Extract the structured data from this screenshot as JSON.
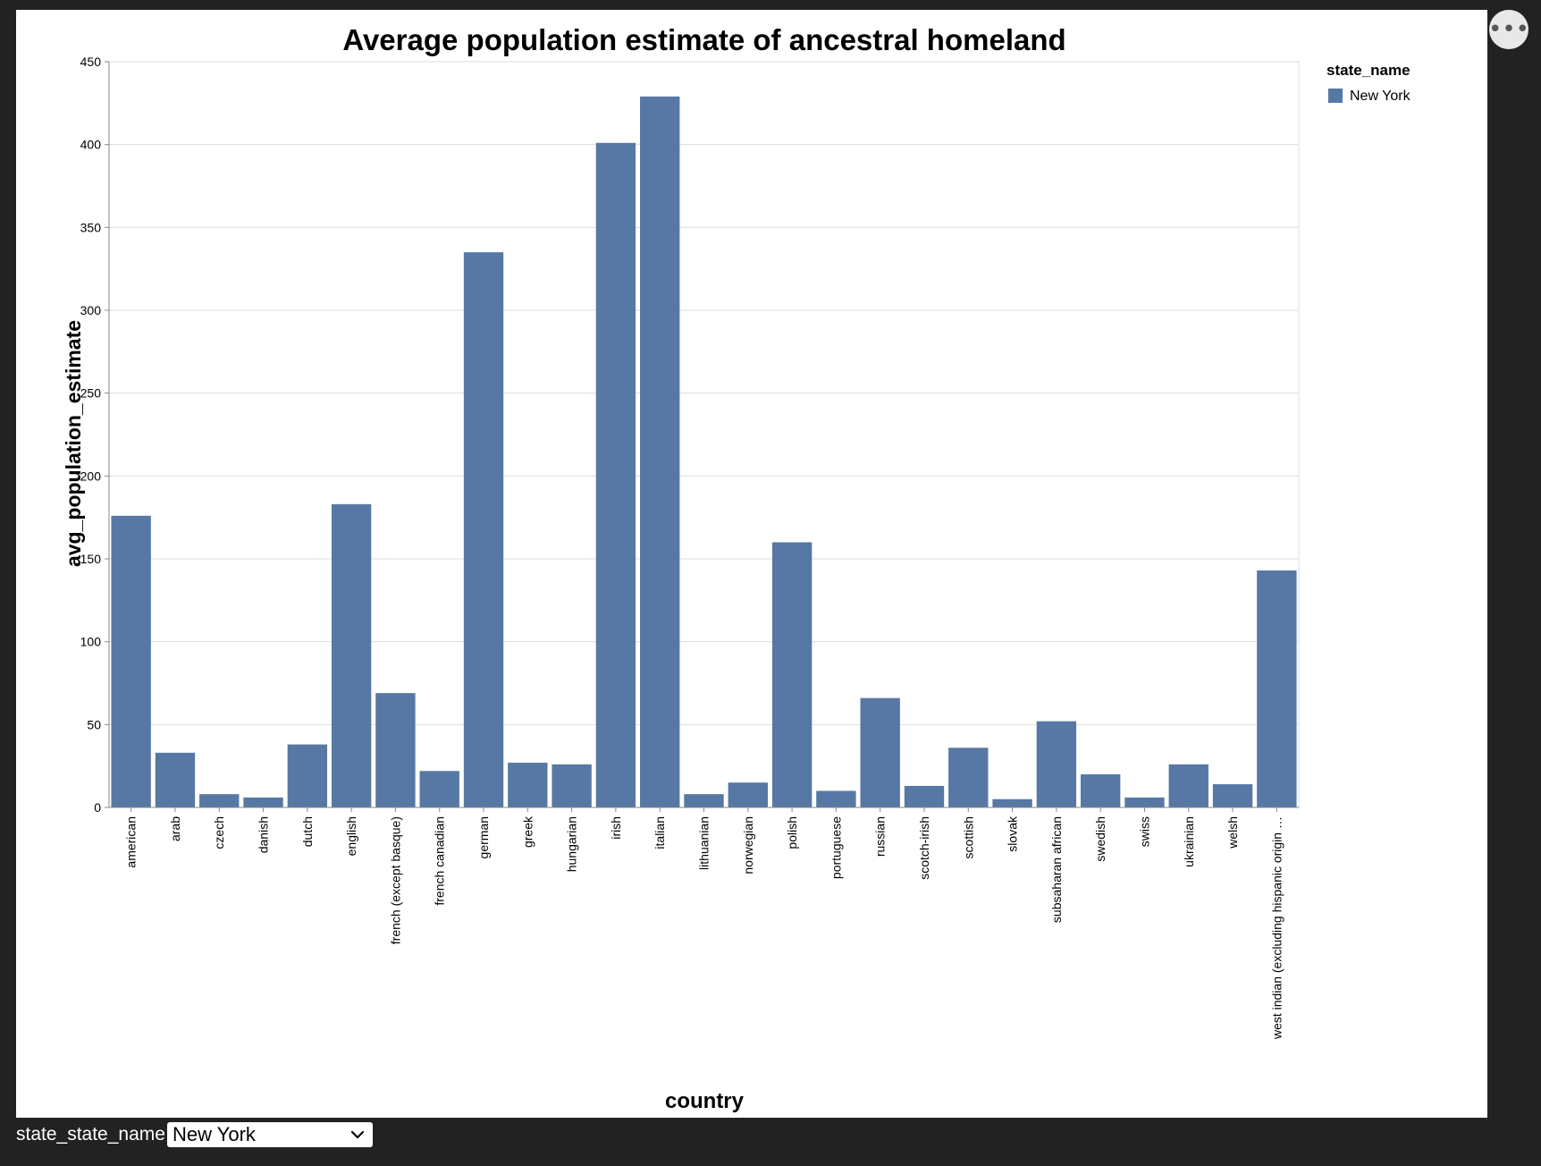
{
  "chart_data": {
    "type": "bar",
    "title": "Average population estimate of ancestral homeland",
    "xlabel": "country",
    "ylabel": "avg_population_estimate",
    "ylim": [
      0,
      450
    ],
    "yticks": [
      0,
      50,
      100,
      150,
      200,
      250,
      300,
      350,
      400,
      450
    ],
    "grid": true,
    "categories": [
      "american",
      "arab",
      "czech",
      "danish",
      "dutch",
      "english",
      "french (except basque)",
      "french canadian",
      "german",
      "greek",
      "hungarian",
      "irish",
      "italian",
      "lithuanian",
      "norwegian",
      "polish",
      "portuguese",
      "russian",
      "scotch-irish",
      "scottish",
      "slovak",
      "subsaharan african",
      "swedish",
      "swiss",
      "ukrainian",
      "welsh",
      "west indian (excluding hispanic origin …"
    ],
    "series": [
      {
        "name": "New York",
        "color": "#5778a4",
        "values": [
          176,
          33,
          8,
          6,
          38,
          183,
          69,
          22,
          335,
          27,
          26,
          401,
          429,
          8,
          15,
          160,
          10,
          66,
          13,
          36,
          5,
          52,
          20,
          6,
          26,
          14,
          143
        ]
      }
    ],
    "legend": {
      "title": "state_name",
      "placement": "top-right",
      "entries": [
        "New York"
      ]
    }
  },
  "controls": {
    "select_label": "state_state_name",
    "selected_value": "New York"
  },
  "menu": {
    "icon": "ellipsis-icon",
    "glyph": "•••"
  }
}
